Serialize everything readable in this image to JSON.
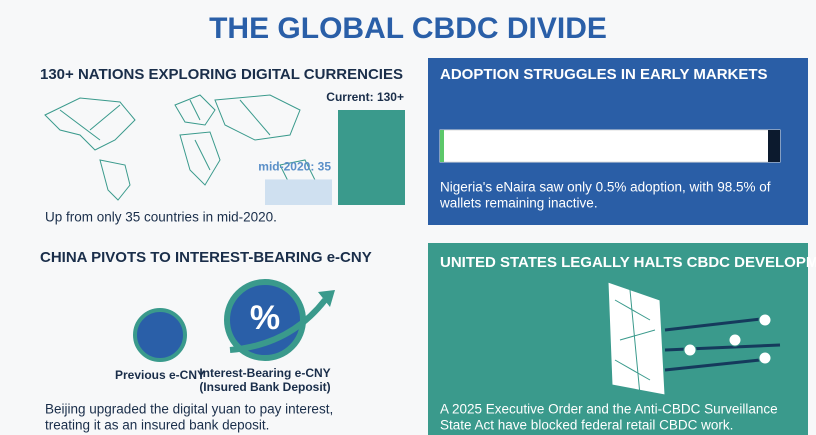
{
  "title": "THE GLOBAL CBDC DIVIDE",
  "panels": [
    {
      "heading": "130+ NATIONS EXPLORING DIGITAL CURRENCIES",
      "bars": [
        {
          "label": "mid-2020: 35",
          "value": 35
        },
        {
          "label": "Current: 130+",
          "value": 130
        }
      ],
      "body": [
        "Up from only 35 countries in mid-2020."
      ]
    },
    {
      "heading": "ADOPTION STRUGGLES IN EARLY MARKETS",
      "body": [
        "Nigeria's eNaira saw only 0.5% adoption, with 98.5% of",
        "wallets remaining inactive."
      ]
    },
    {
      "heading": "CHINA PIVOTS TO INTEREST-BEARING e-CNY",
      "icons": [
        {
          "label": [
            "Previous e-CNY"
          ]
        },
        {
          "label": [
            "Interest-Bearing e-CNY",
            "(Insured Bank Deposit)"
          ],
          "symbol": "%"
        }
      ],
      "body": [
        "Beijing upgraded the digital yuan to pay interest,",
        "treating it as an insured bank deposit."
      ]
    },
    {
      "heading": "UNITED STATES LEGALLY HALTS CBDC DEVELOPMENT",
      "body": [
        "A 2025 Executive Order and the Anti-CBDC Surveillance",
        "State Act have blocked federal retail CBDC work."
      ]
    }
  ]
}
